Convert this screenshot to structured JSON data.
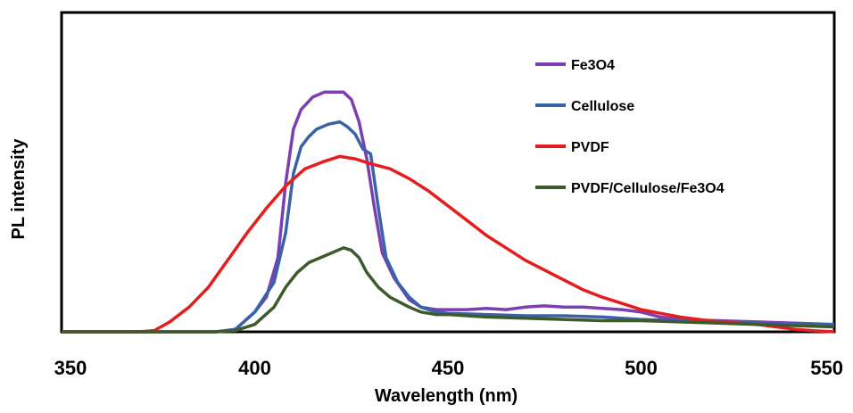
{
  "chart_data": {
    "type": "line",
    "title": "",
    "xlabel": "Wavelength (nm)",
    "ylabel": "PL intensity",
    "xlim": [
      350,
      550
    ],
    "ylim": [
      0,
      1.0
    ],
    "xticks": [
      350,
      400,
      450,
      500,
      550
    ],
    "xtick_labels": [
      "350",
      "400",
      "450",
      "500",
      "550"
    ],
    "y_tick_labels_shown": false,
    "grid": false,
    "legend": {
      "position": "top-right"
    },
    "series": [
      {
        "name": "Fe3O4",
        "color": "#7b3fb3",
        "points": [
          [
            350,
            0
          ],
          [
            390,
            0
          ],
          [
            395,
            0.01
          ],
          [
            400,
            0.08
          ],
          [
            403,
            0.14
          ],
          [
            406,
            0.3
          ],
          [
            408,
            0.6
          ],
          [
            410,
            0.82
          ],
          [
            412,
            0.9
          ],
          [
            415,
            0.95
          ],
          [
            418,
            0.97
          ],
          [
            420,
            0.97
          ],
          [
            423,
            0.97
          ],
          [
            425,
            0.94
          ],
          [
            427,
            0.85
          ],
          [
            429,
            0.7
          ],
          [
            431,
            0.5
          ],
          [
            433,
            0.32
          ],
          [
            436,
            0.22
          ],
          [
            440,
            0.13
          ],
          [
            443,
            0.1
          ],
          [
            447,
            0.09
          ],
          [
            450,
            0.09
          ],
          [
            455,
            0.09
          ],
          [
            460,
            0.095
          ],
          [
            465,
            0.09
          ],
          [
            470,
            0.1
          ],
          [
            475,
            0.105
          ],
          [
            480,
            0.1
          ],
          [
            485,
            0.1
          ],
          [
            490,
            0.095
          ],
          [
            495,
            0.09
          ],
          [
            500,
            0.08
          ],
          [
            505,
            0.06
          ],
          [
            510,
            0.05
          ],
          [
            520,
            0.045
          ],
          [
            530,
            0.04
          ],
          [
            540,
            0.035
          ],
          [
            550,
            0.03
          ]
        ]
      },
      {
        "name": "Cellulose",
        "color": "#3a62a8",
        "points": [
          [
            350,
            0
          ],
          [
            390,
            0
          ],
          [
            395,
            0.01
          ],
          [
            400,
            0.08
          ],
          [
            405,
            0.2
          ],
          [
            408,
            0.4
          ],
          [
            410,
            0.64
          ],
          [
            412,
            0.75
          ],
          [
            414,
            0.79
          ],
          [
            416,
            0.82
          ],
          [
            419,
            0.84
          ],
          [
            422,
            0.85
          ],
          [
            424,
            0.83
          ],
          [
            426,
            0.8
          ],
          [
            428,
            0.74
          ],
          [
            430,
            0.72
          ],
          [
            432,
            0.5
          ],
          [
            434,
            0.3
          ],
          [
            437,
            0.2
          ],
          [
            440,
            0.14
          ],
          [
            443,
            0.1
          ],
          [
            447,
            0.08
          ],
          [
            450,
            0.075
          ],
          [
            460,
            0.07
          ],
          [
            470,
            0.065
          ],
          [
            480,
            0.065
          ],
          [
            490,
            0.06
          ],
          [
            500,
            0.05
          ],
          [
            510,
            0.045
          ],
          [
            520,
            0.04
          ],
          [
            530,
            0.035
          ],
          [
            540,
            0.03
          ],
          [
            550,
            0.03
          ]
        ]
      },
      {
        "name": "PVDF",
        "color": "#e41e1e",
        "points": [
          [
            350,
            0
          ],
          [
            370,
            0
          ],
          [
            374,
            0.005
          ],
          [
            378,
            0.04
          ],
          [
            383,
            0.1
          ],
          [
            388,
            0.18
          ],
          [
            393,
            0.29
          ],
          [
            398,
            0.4
          ],
          [
            403,
            0.5
          ],
          [
            408,
            0.59
          ],
          [
            413,
            0.66
          ],
          [
            418,
            0.69
          ],
          [
            422,
            0.71
          ],
          [
            426,
            0.7
          ],
          [
            430,
            0.68
          ],
          [
            435,
            0.66
          ],
          [
            440,
            0.62
          ],
          [
            445,
            0.57
          ],
          [
            450,
            0.51
          ],
          [
            455,
            0.45
          ],
          [
            460,
            0.39
          ],
          [
            465,
            0.34
          ],
          [
            470,
            0.29
          ],
          [
            475,
            0.25
          ],
          [
            480,
            0.21
          ],
          [
            485,
            0.17
          ],
          [
            490,
            0.14
          ],
          [
            495,
            0.115
          ],
          [
            500,
            0.09
          ],
          [
            505,
            0.075
          ],
          [
            510,
            0.06
          ],
          [
            515,
            0.05
          ],
          [
            520,
            0.04
          ],
          [
            525,
            0.035
          ],
          [
            530,
            0.03
          ],
          [
            535,
            0.02
          ],
          [
            540,
            0.01
          ],
          [
            545,
            0.004
          ],
          [
            550,
            0
          ]
        ]
      },
      {
        "name": "PVDF/Cellulose/Fe3O4",
        "color": "#3e5a2a",
        "points": [
          [
            350,
            0
          ],
          [
            390,
            0
          ],
          [
            395,
            0.005
          ],
          [
            400,
            0.03
          ],
          [
            405,
            0.1
          ],
          [
            408,
            0.18
          ],
          [
            411,
            0.24
          ],
          [
            414,
            0.28
          ],
          [
            417,
            0.3
          ],
          [
            420,
            0.32
          ],
          [
            423,
            0.34
          ],
          [
            425,
            0.33
          ],
          [
            427,
            0.3
          ],
          [
            429,
            0.24
          ],
          [
            432,
            0.18
          ],
          [
            435,
            0.14
          ],
          [
            440,
            0.1
          ],
          [
            443,
            0.08
          ],
          [
            447,
            0.07
          ],
          [
            450,
            0.07
          ],
          [
            455,
            0.065
          ],
          [
            460,
            0.06
          ],
          [
            470,
            0.055
          ],
          [
            480,
            0.05
          ],
          [
            490,
            0.045
          ],
          [
            500,
            0.045
          ],
          [
            510,
            0.04
          ],
          [
            520,
            0.035
          ],
          [
            530,
            0.03
          ],
          [
            540,
            0.025
          ],
          [
            550,
            0.02
          ]
        ]
      }
    ]
  }
}
